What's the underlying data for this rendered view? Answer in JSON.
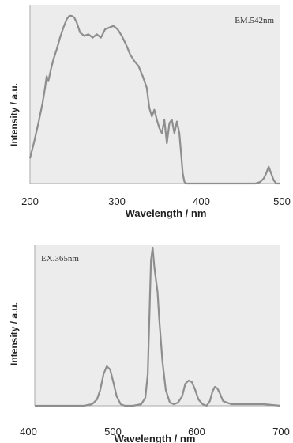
{
  "chart_data": [
    {
      "type": "line",
      "annotation": "EM.542nm",
      "xlabel": "Wavelength / nm",
      "ylabel": "Intensity / a.u.",
      "xlim": [
        200,
        500
      ],
      "ylim": [
        0,
        1.0
      ],
      "xticks": [
        "200",
        "300",
        "400",
        "500"
      ],
      "plot_background": "#ececec",
      "line_color": "#8e8e8e",
      "series": [
        {
          "x": [
            200,
            205,
            210,
            215,
            218,
            220,
            222,
            225,
            228,
            232,
            236,
            240,
            244,
            247,
            250,
            253,
            256,
            260,
            265,
            270,
            275,
            280,
            285,
            290,
            295,
            300,
            305,
            310,
            315,
            320,
            325,
            330,
            335,
            340,
            343,
            346,
            349,
            352,
            355,
            358,
            361,
            364,
            367,
            370,
            373,
            376,
            379,
            381,
            383,
            385,
            387,
            390,
            400,
            420,
            440,
            460,
            470,
            476,
            480,
            483,
            486,
            489,
            492,
            495,
            500
          ],
          "y": [
            0.15,
            0.25,
            0.36,
            0.48,
            0.57,
            0.64,
            0.61,
            0.68,
            0.74,
            0.8,
            0.87,
            0.93,
            0.98,
            1.0,
            1.0,
            0.99,
            0.96,
            0.9,
            0.88,
            0.89,
            0.87,
            0.89,
            0.87,
            0.92,
            0.93,
            0.94,
            0.92,
            0.88,
            0.83,
            0.77,
            0.73,
            0.7,
            0.64,
            0.57,
            0.45,
            0.4,
            0.44,
            0.38,
            0.33,
            0.3,
            0.38,
            0.24,
            0.36,
            0.38,
            0.3,
            0.37,
            0.3,
            0.18,
            0.06,
            0.01,
            0.0,
            0.0,
            0.0,
            0.0,
            0.0,
            0.0,
            0.0,
            0.01,
            0.03,
            0.06,
            0.1,
            0.06,
            0.02,
            0.0,
            0.0
          ]
        }
      ]
    },
    {
      "type": "line",
      "annotation": "EX.365nm",
      "xlabel": "Wavelength / nm",
      "ylabel": "Intensity / a.u.",
      "xlim": [
        400,
        700
      ],
      "ylim": [
        0,
        1.0
      ],
      "xticks": [
        "400",
        "500",
        "600",
        "700"
      ],
      "plot_background": "#ececec",
      "line_color": "#8e8e8e",
      "series": [
        {
          "x": [
            400,
            420,
            440,
            460,
            470,
            476,
            480,
            484,
            488,
            492,
            496,
            500,
            505,
            510,
            520,
            530,
            535,
            538,
            540,
            542,
            544,
            546,
            548,
            550,
            552,
            556,
            560,
            565,
            570,
            575,
            580,
            584,
            588,
            592,
            596,
            600,
            605,
            610,
            614,
            617,
            620,
            623,
            626,
            630,
            640,
            660,
            680,
            700
          ],
          "y": [
            0.0,
            0.0,
            0.0,
            0.0,
            0.01,
            0.04,
            0.1,
            0.2,
            0.25,
            0.23,
            0.15,
            0.06,
            0.01,
            0.0,
            0.0,
            0.01,
            0.05,
            0.2,
            0.55,
            0.92,
            1.0,
            0.88,
            0.8,
            0.72,
            0.55,
            0.28,
            0.1,
            0.02,
            0.01,
            0.02,
            0.06,
            0.14,
            0.16,
            0.15,
            0.1,
            0.04,
            0.01,
            0.0,
            0.03,
            0.09,
            0.12,
            0.11,
            0.08,
            0.03,
            0.01,
            0.01,
            0.01,
            0.0
          ]
        }
      ]
    }
  ]
}
